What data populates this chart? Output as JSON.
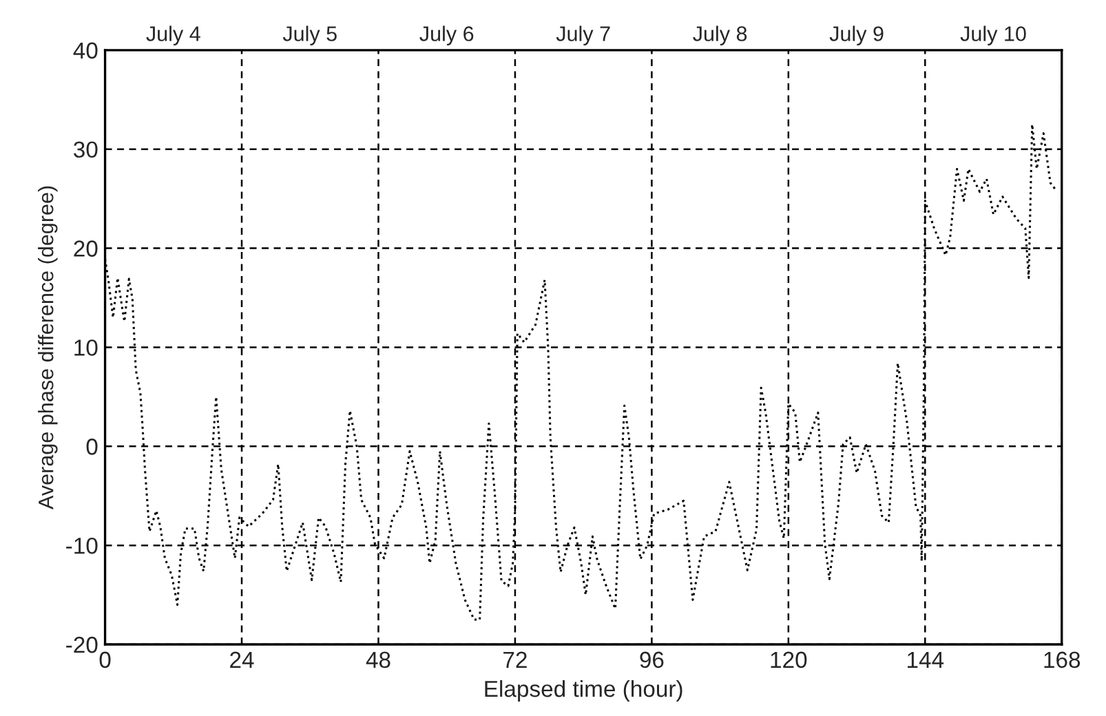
{
  "chart_data": {
    "type": "line",
    "xlabel": "Elapsed time (hour)",
    "ylabel": "Average phase difference (degree)",
    "xlim": [
      0,
      168
    ],
    "xticks": [
      0,
      24,
      48,
      72,
      96,
      120,
      144,
      168
    ],
    "ylim": [
      -20,
      40
    ],
    "yticks": [
      -20,
      -10,
      0,
      10,
      20,
      30,
      40
    ],
    "annotations": [
      "July 4",
      "July 5",
      "July 6",
      "July 7",
      "July 8",
      "July 9",
      "July 10"
    ],
    "grid": true,
    "line_style": "dotted",
    "marker": "none",
    "legend": false,
    "series": [
      {
        "color": "#000000",
        "x": [
          0,
          0.6,
          1.4,
          2.2,
          3,
          3.4,
          4.2,
          4.8,
          5.4,
          6.2,
          6.6,
          7,
          7.8,
          9,
          9.7,
          10.5,
          11.7,
          12.7,
          13.3,
          14.1,
          15.7,
          16.5,
          17.3,
          18,
          18.9,
          19.5,
          20.4,
          21.6,
          22.8,
          23.6,
          25.2,
          27.6,
          29.5,
          30.4,
          31.1,
          31.9,
          34.7,
          36.3,
          37.5,
          38.7,
          40.2,
          41.4,
          42.2,
          43,
          44.2,
          45,
          46.6,
          47.4,
          49,
          50.5,
          52.1,
          53.5,
          54.9,
          56.4,
          57,
          58,
          58.8,
          60,
          61.6,
          63.2,
          64.8,
          65.8,
          66.4,
          67.4,
          68.4,
          69.6,
          70.8,
          71.6,
          72,
          72.4,
          73.6,
          75.6,
          77.2,
          77.8,
          78.2,
          79.2,
          80,
          81.2,
          82.4,
          83.6,
          84.4,
          85.6,
          86.4,
          88,
          89.6,
          90.4,
          91.2,
          92,
          92.8,
          94,
          95.2,
          96.4,
          98.8,
          101.6,
          103.2,
          105.2,
          107.2,
          109.6,
          112.8,
          114.4,
          115.2,
          116,
          118.4,
          119.2,
          120,
          121.2,
          122,
          123.2,
          125.2,
          126.4,
          127.2,
          128.8,
          129.6,
          130.8,
          132,
          133.6,
          135.2,
          136.4,
          137.6,
          138.4,
          139.2,
          140.8,
          142.4,
          143.2,
          143.4,
          143.8,
          144,
          145.6,
          147.6,
          148.4,
          149.6,
          150.8,
          151.6,
          153.6,
          154.8,
          156,
          157.6,
          160,
          161.6,
          162.2,
          162.8,
          163.6,
          164.8,
          166,
          166.8
        ],
        "values": [
          18.9,
          16.7,
          13,
          17,
          14,
          12.6,
          16.9,
          14.9,
          7.7,
          5.4,
          1.8,
          -2.3,
          -8.6,
          -6.5,
          -8.1,
          -11.3,
          -13,
          -16,
          -10.8,
          -8.3,
          -8.3,
          -11.3,
          -12.6,
          -8.1,
          0,
          5,
          -2.3,
          -6.8,
          -11.3,
          -7.2,
          -8.1,
          -6.8,
          -5.4,
          -1.8,
          -8.1,
          -12.6,
          -7.7,
          -13.5,
          -7.2,
          -8.1,
          -10.8,
          -13.7,
          -1.8,
          3.6,
          0,
          -5.4,
          -7.2,
          -9.9,
          -11.3,
          -7.2,
          -5.9,
          -0.5,
          -3.6,
          -8.2,
          -11.8,
          -9.5,
          -0.5,
          -5.9,
          -11.8,
          -15.5,
          -17.5,
          -17.5,
          -7.3,
          2.3,
          -4.5,
          -13.6,
          -14.1,
          -11.8,
          -6.4,
          11.4,
          10.5,
          12.3,
          16.8,
          10,
          0.9,
          -8.2,
          -12.7,
          -10,
          -8.2,
          -11.8,
          -15,
          -9.1,
          -11.4,
          -14.1,
          -16.4,
          -5.9,
          4.1,
          0.9,
          -4.5,
          -11.4,
          -10,
          -6.8,
          -6.4,
          -5.5,
          -15.5,
          -9.1,
          -8.6,
          -3.6,
          -12.5,
          -8.4,
          5.9,
          3.4,
          -7.5,
          -9.3,
          4.3,
          3.4,
          -1.6,
          0.2,
          3.4,
          -9.8,
          -13.4,
          -5.7,
          0.2,
          0.9,
          -2.7,
          0.2,
          -2.5,
          -7,
          -7.7,
          -0.2,
          8.4,
          2.5,
          -6.1,
          -7,
          -11.6,
          6.6,
          24.8,
          22,
          19.3,
          21.1,
          28,
          24.8,
          28,
          25.7,
          27,
          23.4,
          25.2,
          23,
          22,
          17,
          32.5,
          28,
          31.6,
          26.6,
          26
        ]
      }
    ]
  }
}
